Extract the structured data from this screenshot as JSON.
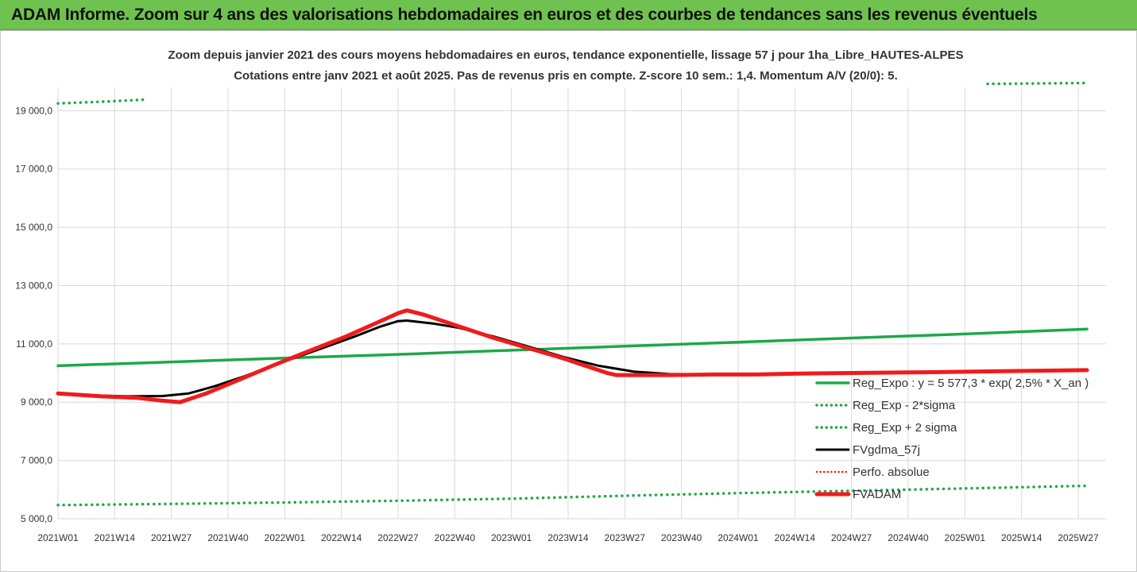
{
  "banner": {
    "title": "ADAM Informe. Zoom sur 4 ans des valorisations hebdomadaires en euros et des courbes de tendances sans les revenus éventuels"
  },
  "colors": {
    "banner": "#6fc24f",
    "reg_expo": "#1ea84a",
    "sigma": "#22a84a",
    "fvgdma": "#000000",
    "perfo": "#e8201c",
    "fvadam": "#f01b1b",
    "grid": "#d9d9d9"
  },
  "chart_data": {
    "type": "line",
    "title_lines": [
      "Zoom depuis janvier 2021 des cours moyens hebdomadaires en euros, tendance exponentielle, lissage 57 j pour 1ha_Libre_HAUTES-ALPES",
      "Cotations entre janv 2021 et août 2025.  Pas de revenus pris en compte. Z-score 10 sem.: 1,4. Momentum A/V (20/0): 5."
    ],
    "x_ticks": [
      "2021W01",
      "2021W14",
      "2021W27",
      "2021W40",
      "2022W01",
      "2022W14",
      "2022W27",
      "2022W40",
      "2023W01",
      "2023W14",
      "2023W27",
      "2023W40",
      "2024W01",
      "2024W14",
      "2024W27",
      "2024W40",
      "2025W01",
      "2025W14",
      "2025W27"
    ],
    "x_range_weeks": [
      0,
      236
    ],
    "y_ticks": [
      "5 000,0",
      "7 000,0",
      "9 000,0",
      "11 000,0",
      "13 000,0",
      "15 000,0",
      "17 000,0",
      "19 000,0"
    ],
    "y_tick_values": [
      5000,
      7000,
      9000,
      11000,
      13000,
      15000,
      17000,
      19000
    ],
    "ylim": [
      5000,
      19800
    ],
    "grid": "vertical and horizontal",
    "legend_position": "lower-right",
    "legend": [
      "Reg_Expo : y = 5 577,3 * exp( 2,5% *  X_an )",
      "Reg_Exp - 2*sigma",
      "Reg_Exp + 2 sigma",
      "FVgdma_57j",
      "Perfo. absolue",
      "FVADAM"
    ],
    "series": [
      {
        "name": "Reg_Expo : y = 5 577,3 * exp( 2,5% *  X_an )",
        "style": "solid",
        "points": [
          [
            0,
            10250
          ],
          [
            26,
            10380
          ],
          [
            52,
            10510
          ],
          [
            78,
            10640
          ],
          [
            104,
            10780
          ],
          [
            130,
            10920
          ],
          [
            156,
            11060
          ],
          [
            182,
            11200
          ],
          [
            208,
            11340
          ],
          [
            236,
            11510
          ]
        ]
      },
      {
        "name": "Reg_Exp - 2*sigma",
        "style": "dotted",
        "points": [
          [
            0,
            5470
          ],
          [
            26,
            5510
          ],
          [
            52,
            5560
          ],
          [
            78,
            5620
          ],
          [
            104,
            5690
          ],
          [
            130,
            5790
          ],
          [
            156,
            5880
          ],
          [
            182,
            5960
          ],
          [
            208,
            6040
          ],
          [
            236,
            6130
          ]
        ]
      },
      {
        "name": "Reg_Exp + 2 sigma",
        "style": "dotted",
        "points": [
          [
            0,
            19250
          ],
          [
            10,
            19310
          ],
          [
            20,
            19380
          ],
          [
            236,
            19950
          ]
        ]
      },
      {
        "name": "FVgdma_57j",
        "style": "solid",
        "points": [
          [
            0,
            9300
          ],
          [
            8,
            9230
          ],
          [
            16,
            9200
          ],
          [
            24,
            9210
          ],
          [
            30,
            9300
          ],
          [
            36,
            9550
          ],
          [
            42,
            9850
          ],
          [
            52,
            10400
          ],
          [
            60,
            10820
          ],
          [
            68,
            11250
          ],
          [
            74,
            11600
          ],
          [
            78,
            11780
          ],
          [
            80,
            11800
          ],
          [
            86,
            11700
          ],
          [
            92,
            11550
          ],
          [
            100,
            11250
          ],
          [
            108,
            10900
          ],
          [
            116,
            10550
          ],
          [
            124,
            10250
          ],
          [
            132,
            10050
          ],
          [
            140,
            9970
          ],
          [
            150,
            9950
          ],
          [
            160,
            9950
          ],
          [
            170,
            9980
          ],
          [
            180,
            10000
          ],
          [
            200,
            10030
          ],
          [
            220,
            10070
          ],
          [
            236,
            10100
          ]
        ]
      },
      {
        "name": "FVADAM",
        "style": "solid",
        "points": [
          [
            0,
            9300
          ],
          [
            10,
            9200
          ],
          [
            18,
            9150
          ],
          [
            24,
            9050
          ],
          [
            28,
            9000
          ],
          [
            34,
            9300
          ],
          [
            42,
            9800
          ],
          [
            50,
            10300
          ],
          [
            58,
            10780
          ],
          [
            66,
            11250
          ],
          [
            72,
            11650
          ],
          [
            78,
            12050
          ],
          [
            80,
            12150
          ],
          [
            84,
            12000
          ],
          [
            92,
            11600
          ],
          [
            100,
            11200
          ],
          [
            108,
            10850
          ],
          [
            116,
            10500
          ],
          [
            122,
            10200
          ],
          [
            126,
            10000
          ],
          [
            128,
            9930
          ],
          [
            140,
            9930
          ],
          [
            150,
            9950
          ],
          [
            160,
            9950
          ],
          [
            170,
            9980
          ],
          [
            180,
            10000
          ],
          [
            200,
            10030
          ],
          [
            220,
            10070
          ],
          [
            236,
            10100
          ]
        ]
      }
    ]
  }
}
